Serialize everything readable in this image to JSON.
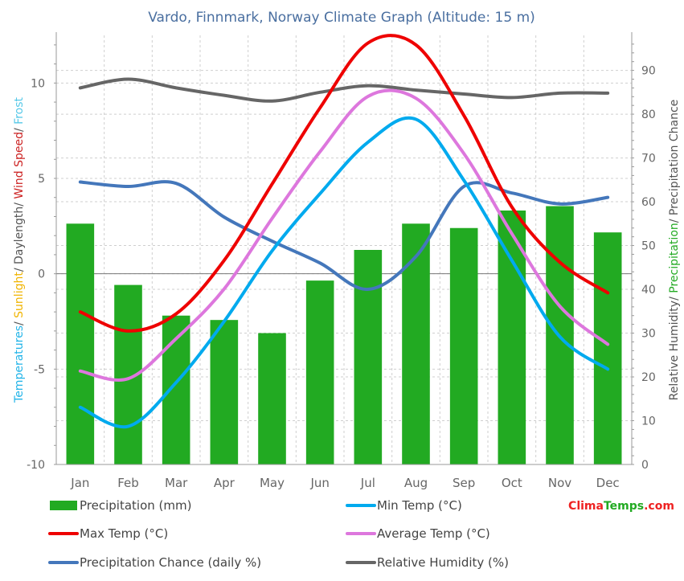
{
  "chart_data": {
    "type": "bar",
    "title": "Vardo, Finnmark, Norway Climate Graph (Altitude: 15 m)",
    "categories": [
      "Jan",
      "Feb",
      "Mar",
      "Apr",
      "May",
      "Jun",
      "Jul",
      "Aug",
      "Sep",
      "Oct",
      "Nov",
      "Dec"
    ],
    "left_axis": {
      "ylim": [
        -10,
        12.5
      ],
      "ticks": [
        -10,
        -5,
        0,
        5,
        10
      ],
      "label_parts": [
        {
          "text": "Temperatures",
          "color": "#22b4e8"
        },
        {
          "text": "/ ",
          "color": "#555555"
        },
        {
          "text": "Sunlight",
          "color": "#f0b400"
        },
        {
          "text": "/ Daylength/ ",
          "color": "#555555"
        },
        {
          "text": "Wind Speed",
          "color": "#cc2222"
        },
        {
          "text": "/ ",
          "color": "#555555"
        },
        {
          "text": "Frost",
          "color": "#55c8e8"
        }
      ]
    },
    "right_axis": {
      "ylim": [
        0,
        98
      ],
      "ticks": [
        0,
        10,
        20,
        30,
        40,
        50,
        60,
        70,
        80,
        90
      ],
      "label_parts": [
        {
          "text": "Relative Humidity/ ",
          "color": "#555555"
        },
        {
          "text": "Precipitation",
          "color": "#22aa22"
        },
        {
          "text": "/ Precipitation Chance",
          "color": "#555555"
        }
      ]
    },
    "series": [
      {
        "name": "Precipitation (mm)",
        "kind": "bar",
        "axis": "right",
        "color": "#22aa22",
        "values": [
          55,
          41,
          34,
          33,
          30,
          42,
          49,
          55,
          54,
          58,
          59,
          53
        ]
      },
      {
        "name": "Min Temp (°C)",
        "kind": "line",
        "axis": "left",
        "color": "#00aaee",
        "values": [
          -7,
          -8,
          -5.7,
          -2.5,
          1.2,
          4.2,
          6.9,
          8.1,
          4.9,
          0.7,
          -3.3,
          -5
        ]
      },
      {
        "name": "Max Temp (°C)",
        "kind": "line",
        "axis": "left",
        "color": "#ee0000",
        "values": [
          -2,
          -3,
          -2.1,
          0.7,
          4.7,
          8.7,
          12.1,
          12,
          8.3,
          3.5,
          0.6,
          -1
        ]
      },
      {
        "name": "Average Temp (°C)",
        "kind": "line",
        "axis": "left",
        "color": "#dd77dd",
        "values": [
          -5.1,
          -5.5,
          -3.4,
          -0.8,
          2.9,
          6.4,
          9.3,
          9.2,
          6.3,
          2.1,
          -1.7,
          -3.7
        ]
      },
      {
        "name": "Precipitation Chance (daily %)",
        "kind": "line",
        "axis": "right",
        "color": "#4477bb",
        "values": [
          64.5,
          63.5,
          64.2,
          56.5,
          51,
          46,
          40,
          47.5,
          63.5,
          62,
          59.5,
          61
        ]
      },
      {
        "name": "Relative Humidity (%)",
        "kind": "line",
        "axis": "right",
        "color": "#666666",
        "values": [
          86,
          88,
          86,
          84.3,
          83,
          85,
          86.5,
          85.5,
          84.6,
          83.8,
          84.8,
          84.8
        ]
      }
    ],
    "legend": {
      "placement": "bottom",
      "order": [
        0,
        1,
        2,
        3,
        4,
        5
      ]
    },
    "grid": true,
    "watermark": "ClimaTemps.com",
    "watermark_colors": {
      "clima": "#ee2222",
      "temps": "#22aa22",
      "com": "#ee2222"
    }
  }
}
